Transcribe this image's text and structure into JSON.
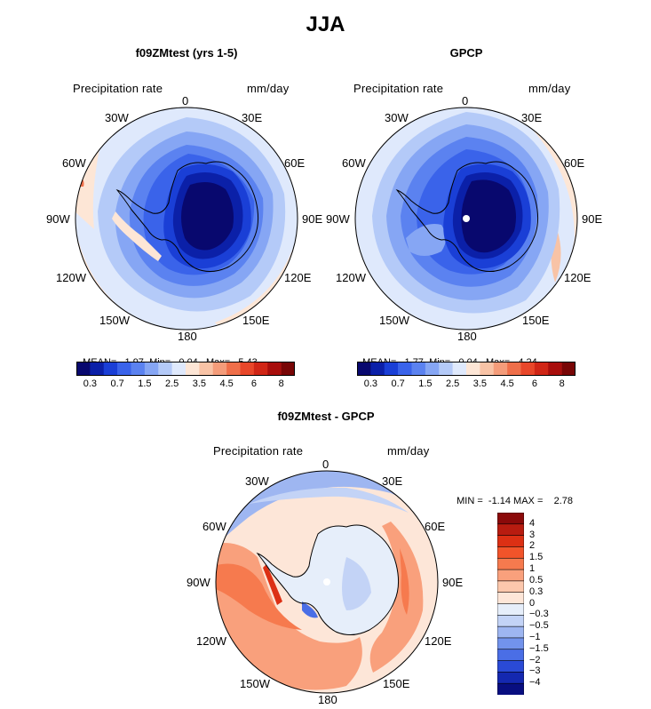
{
  "title": "JJA",
  "panels": [
    {
      "id": "model",
      "title": "f09ZMtest (yrs 1-5)",
      "variable": "Precipitation rate",
      "units": "mm/day",
      "stats": {
        "mean_label": "MEAN=",
        "mean": "1.97",
        "min_label": "Min=",
        "min": "0.04",
        "max_label": "Max=",
        "max": "5.43"
      }
    },
    {
      "id": "obs",
      "title": "GPCP",
      "variable": "Precipitation rate",
      "units": "mm/day",
      "stats": {
        "mean_label": "MEAN=",
        "mean": "1.77",
        "min_label": "Min=",
        "min": "0.04",
        "max_label": "Max=",
        "max": "4.24"
      }
    },
    {
      "id": "diff",
      "title": "f09ZMtest - GPCP",
      "variable": "Precipitation rate",
      "units": "mm/day",
      "stats": {
        "min_label": "MIN =",
        "min": "-1.14",
        "max_label": "MAX =",
        "max": "2.78"
      }
    }
  ],
  "longitude_labels": [
    "0",
    "30E",
    "60E",
    "90E",
    "120E",
    "150E",
    "180",
    "150W",
    "120W",
    "90W",
    "60W",
    "30W"
  ],
  "colorbar_abs": {
    "colors": [
      "#08086e",
      "#0b20a8",
      "#1a3fd6",
      "#3a63ea",
      "#5b82f0",
      "#86a6f4",
      "#b4caf8",
      "#dfe9fc",
      "#fde6d6",
      "#f8c3a6",
      "#f49c7a",
      "#ef6f4a",
      "#e8472a",
      "#d02616",
      "#a80e0c",
      "#780606"
    ],
    "tick_labels": [
      "0.3",
      "0.7",
      "1.5",
      "2.5",
      "3.5",
      "4.5",
      "6",
      "8"
    ]
  },
  "colorbar_diff": {
    "colors": [
      "#8b0a0a",
      "#b81c10",
      "#dc3014",
      "#f2542a",
      "#f67a4e",
      "#f9a07c",
      "#fcc7ac",
      "#fde6d8",
      "#e6eefa",
      "#c3d3f6",
      "#9eb6f1",
      "#7293ec",
      "#4a6ee6",
      "#2a4ad6",
      "#1428b0",
      "#080e80"
    ],
    "tick_labels": [
      "4",
      "3",
      "2",
      "1.5",
      "1",
      "0.5",
      "0.3",
      "0",
      "−0.3",
      "−0.5",
      "−1",
      "−1.5",
      "−2",
      "−3",
      "−4"
    ]
  }
}
